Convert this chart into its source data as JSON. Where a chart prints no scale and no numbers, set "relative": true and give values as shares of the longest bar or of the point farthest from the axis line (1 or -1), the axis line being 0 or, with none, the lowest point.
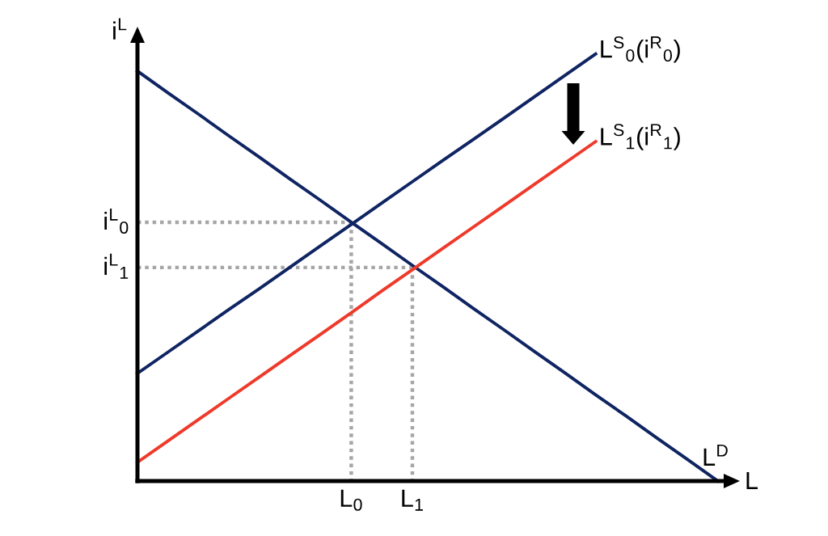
{
  "chart_data": {
    "type": "line",
    "relative": true,
    "xlabel": "L",
    "ylabel": "i$^{L}$",
    "categories": [
      null,
      null,
      null,
      null,
      null,
      null,
      null,
      "L$_{0}$",
      null,
      "L$_{1}$",
      null,
      null,
      null,
      null,
      null,
      null,
      null,
      null,
      null,
      null
    ],
    "series": [
      {
        "name": "i$^{L}$$_{0}$",
        "color": "#a6a6a6",
        "line_style": "dotted",
        "values": [
          0.606,
          0.606,
          0.606,
          0.606,
          0.606,
          0.606,
          0.606,
          0.606,
          null,
          null,
          null,
          null,
          null,
          null,
          null,
          null,
          null,
          null,
          null,
          null
        ]
      },
      {
        "color": "#a6a6a6",
        "line_style": "dotted",
        "x": [
          "L$_{0}$",
          "L$_{0}$"
        ],
        "values": [
          0.606,
          0
        ]
      },
      {
        "name": "i$^{L}$$_{1}$",
        "color": "#a6a6a6",
        "line_style": "dotted",
        "values": [
          0.5,
          0.5,
          0.5,
          0.5,
          0.5,
          0.5,
          0.5,
          0.5,
          0.5,
          0.5,
          null,
          null,
          null,
          null,
          null,
          null,
          null,
          null,
          null,
          null
        ]
      },
      {
        "color": "#a6a6a6",
        "line_style": "dotted",
        "x": [
          "L$_{1}$",
          "L$_{1}$"
        ],
        "values": [
          0.5,
          0
        ]
      },
      {
        "name": "L$^{D}$",
        "color": "#0f2462",
        "values": [
          0.96,
          0.909,
          0.859,
          0.808,
          0.758,
          0.707,
          0.657,
          0.606,
          0.556,
          0.505,
          0.455,
          0.404,
          0.354,
          0.303,
          0.253,
          0.202,
          0.152,
          0.101,
          0.051,
          0
        ]
      },
      {
        "name": "L$^{S}$$_{0}$(i$^{R}$$_{0}$)",
        "color": "#0f2462",
        "values": [
          0.252,
          0.302,
          0.352,
          0.402,
          0.451,
          0.501,
          0.551,
          0.601,
          0.651,
          0.701,
          0.751,
          0.8,
          0.85,
          0.9,
          0.95,
          1,
          null,
          null,
          null,
          null
        ]
      },
      {
        "name": "L$^{S}$$_{1}$(i$^{R}$$_{1}$)",
        "color": "#ee3a2b",
        "values": [
          0.044,
          0.094,
          0.144,
          0.194,
          0.244,
          0.294,
          0.344,
          0.394,
          0.445,
          0.495,
          0.545,
          0.595,
          0.645,
          0.695,
          0.745,
          0.795,
          null,
          null,
          null,
          null
        ]
      }
    ]
  }
}
